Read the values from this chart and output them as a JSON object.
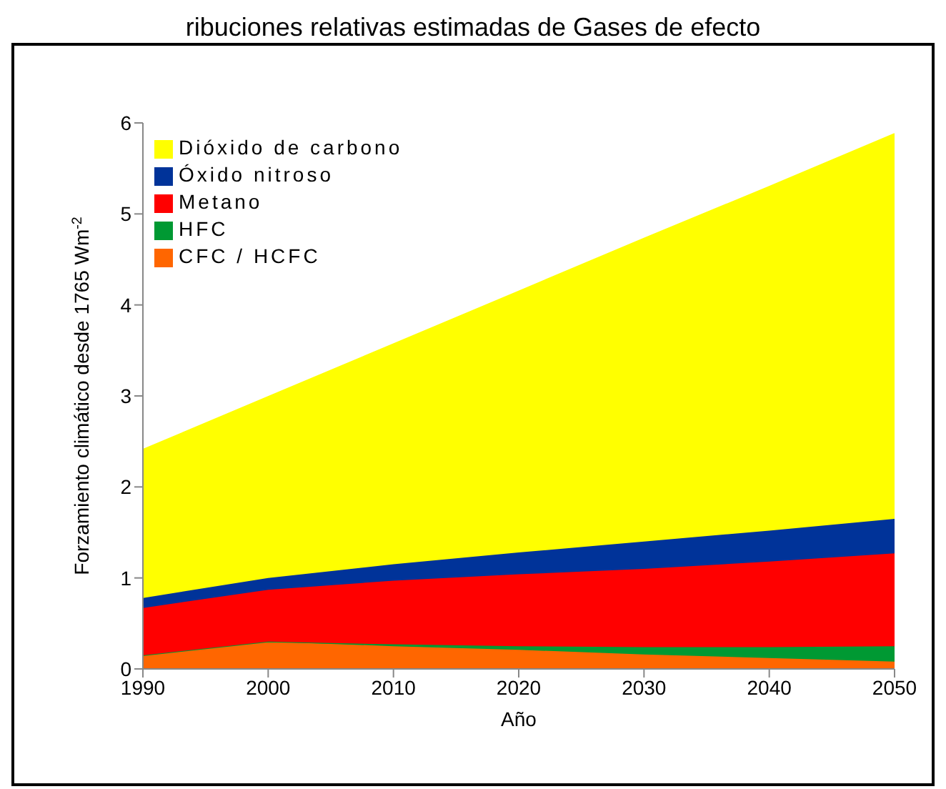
{
  "chart_data": {
    "type": "area",
    "title": "ribuciones relativas estimadas de Gases de efecto",
    "xlabel": "Año",
    "ylabel": "Forzamiento climático desde 1765 Wm$^{-2}$",
    "x": [
      1990,
      2000,
      2010,
      2020,
      2030,
      2040,
      2050
    ],
    "stacked": true,
    "series": [
      {
        "name": "CFC / HCFC",
        "color": "#ff6600",
        "values": [
          0.15,
          0.3,
          0.25,
          0.21,
          0.16,
          0.12,
          0.08
        ]
      },
      {
        "name": "HFC",
        "color": "#009933",
        "values": [
          0,
          0,
          0.02,
          0.04,
          0.08,
          0.12,
          0.17
        ]
      },
      {
        "name": "Metano",
        "color": "#ff0000",
        "values": [
          0.52,
          0.57,
          0.7,
          0.79,
          0.86,
          0.94,
          1.02
        ]
      },
      {
        "name": "Óxido nitroso",
        "color": "#003399",
        "values": [
          0.11,
          0.13,
          0.18,
          0.24,
          0.3,
          0.34,
          0.38
        ]
      },
      {
        "name": "Dióxido de carbono",
        "color": "#ffff00",
        "values": [
          1.63,
          1.99,
          2.42,
          2.87,
          3.33,
          3.78,
          4.23
        ]
      }
    ],
    "xlim": [
      1990,
      2050
    ],
    "xticks": [
      1990,
      2000,
      2010,
      2020,
      2030,
      2040,
      2050
    ],
    "ylim": [
      0,
      6
    ],
    "yticks": [
      0,
      1,
      2,
      3,
      4,
      5,
      6
    ],
    "grid": false,
    "legend": "top left"
  }
}
